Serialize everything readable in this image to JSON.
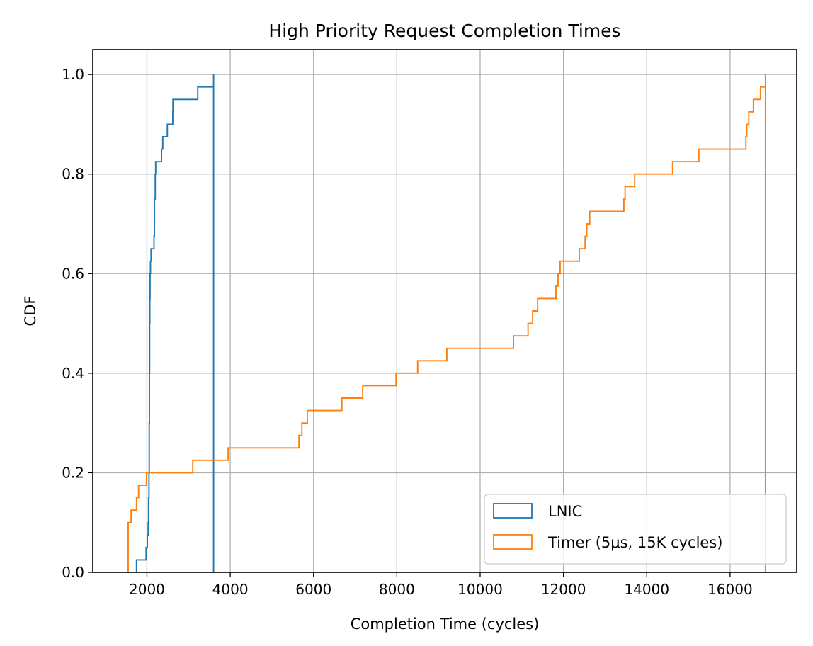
{
  "chart_data": {
    "type": "step",
    "title": "High Priority Request Completion Times",
    "xlabel": "Completion Time (cycles)",
    "ylabel": "CDF",
    "xlim": [
      700,
      17600
    ],
    "ylim": [
      0,
      1.05
    ],
    "xticks": [
      2000,
      4000,
      6000,
      8000,
      10000,
      12000,
      14000,
      16000
    ],
    "yticks": [
      0.0,
      0.2,
      0.4,
      0.6,
      0.8,
      1.0
    ],
    "xtick_labels": [
      "2000",
      "4000",
      "6000",
      "8000",
      "10000",
      "12000",
      "14000",
      "16000"
    ],
    "ytick_labels": [
      "0.0",
      "0.2",
      "0.4",
      "0.6",
      "0.8",
      "1.0"
    ],
    "grid": true,
    "legend_position": "lower-right",
    "series": [
      {
        "name": "LNIC",
        "color": "#1f77b4",
        "end_x": 3600,
        "steps": [
          [
            1750,
            0.025
          ],
          [
            1980,
            0.05
          ],
          [
            2010,
            0.075
          ],
          [
            2030,
            0.1
          ],
          [
            2040,
            0.15
          ],
          [
            2050,
            0.2
          ],
          [
            2055,
            0.3
          ],
          [
            2060,
            0.4
          ],
          [
            2065,
            0.5
          ],
          [
            2070,
            0.55
          ],
          [
            2075,
            0.6
          ],
          [
            2085,
            0.625
          ],
          [
            2100,
            0.65
          ],
          [
            2170,
            0.675
          ],
          [
            2180,
            0.75
          ],
          [
            2200,
            0.8
          ],
          [
            2210,
            0.825
          ],
          [
            2350,
            0.85
          ],
          [
            2380,
            0.875
          ],
          [
            2490,
            0.9
          ],
          [
            2620,
            0.925
          ],
          [
            2625,
            0.95
          ],
          [
            3220,
            0.975
          ],
          [
            3600,
            1.0
          ]
        ]
      },
      {
        "name": "Timer (5μs, 15K cycles)",
        "color": "#ff7f0e",
        "end_x": 16850,
        "steps": [
          [
            1550,
            0.1
          ],
          [
            1620,
            0.125
          ],
          [
            1750,
            0.15
          ],
          [
            1800,
            0.175
          ],
          [
            1990,
            0.2
          ],
          [
            3100,
            0.225
          ],
          [
            3950,
            0.25
          ],
          [
            5650,
            0.275
          ],
          [
            5720,
            0.3
          ],
          [
            5850,
            0.325
          ],
          [
            6680,
            0.35
          ],
          [
            7180,
            0.375
          ],
          [
            7980,
            0.4
          ],
          [
            8500,
            0.425
          ],
          [
            9200,
            0.45
          ],
          [
            10800,
            0.475
          ],
          [
            11150,
            0.5
          ],
          [
            11260,
            0.525
          ],
          [
            11380,
            0.55
          ],
          [
            11820,
            0.575
          ],
          [
            11870,
            0.6
          ],
          [
            11920,
            0.625
          ],
          [
            12380,
            0.65
          ],
          [
            12520,
            0.675
          ],
          [
            12560,
            0.7
          ],
          [
            12630,
            0.725
          ],
          [
            13450,
            0.75
          ],
          [
            13480,
            0.775
          ],
          [
            13710,
            0.8
          ],
          [
            14620,
            0.825
          ],
          [
            15250,
            0.85
          ],
          [
            16380,
            0.875
          ],
          [
            16400,
            0.9
          ],
          [
            16450,
            0.925
          ],
          [
            16560,
            0.95
          ],
          [
            16730,
            0.975
          ],
          [
            16850,
            1.0
          ]
        ]
      }
    ]
  }
}
